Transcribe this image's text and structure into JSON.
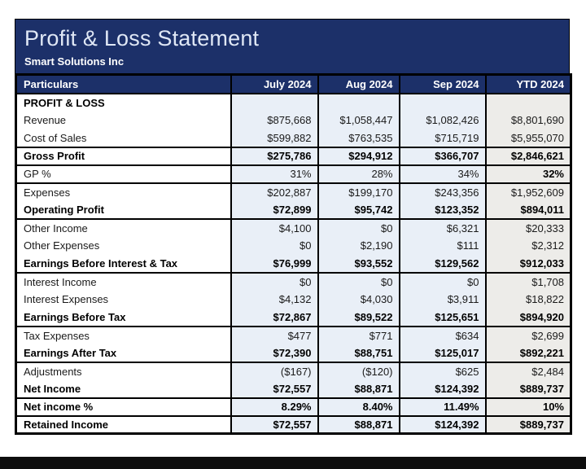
{
  "statement": {
    "title": "Profit & Loss Statement",
    "company": "Smart Solutions Inc"
  },
  "table": {
    "columns": [
      {
        "label": "Particulars"
      },
      {
        "label": "July 2024"
      },
      {
        "label": "Aug 2024"
      },
      {
        "label": "Sep 2024"
      },
      {
        "label": "YTD 2024"
      }
    ],
    "rows": [
      {
        "label": "PROFIT & LOSS",
        "bold": true,
        "sep_below": false,
        "values": [
          "",
          "",
          "",
          ""
        ]
      },
      {
        "label": "Revenue",
        "bold": false,
        "sep_below": false,
        "values": [
          "$875,668",
          "$1,058,447",
          "$1,082,426",
          "$8,801,690"
        ]
      },
      {
        "label": "Cost of Sales",
        "bold": false,
        "sep_below": true,
        "values": [
          "$599,882",
          "$763,535",
          "$715,719",
          "$5,955,070"
        ]
      },
      {
        "label": "Gross Profit",
        "bold": true,
        "sep_below": true,
        "values": [
          "$275,786",
          "$294,912",
          "$366,707",
          "$2,846,621"
        ]
      },
      {
        "label": "GP %",
        "bold": false,
        "ytd_bold": true,
        "sep_below": true,
        "values": [
          "31%",
          "28%",
          "34%",
          "32%"
        ]
      },
      {
        "label": "Expenses",
        "bold": false,
        "sep_below": false,
        "values": [
          "$202,887",
          "$199,170",
          "$243,356",
          "$1,952,609"
        ]
      },
      {
        "label": "Operating Profit",
        "bold": true,
        "sep_below": true,
        "values": [
          "$72,899",
          "$95,742",
          "$123,352",
          "$894,011"
        ]
      },
      {
        "label": "Other Income",
        "bold": false,
        "sep_below": false,
        "values": [
          "$4,100",
          "$0",
          "$6,321",
          "$20,333"
        ]
      },
      {
        "label": "Other Expenses",
        "bold": false,
        "sep_below": false,
        "values": [
          "$0",
          "$2,190",
          "$111",
          "$2,312"
        ]
      },
      {
        "label": "Earnings Before Interest & Tax",
        "bold": true,
        "sep_below": true,
        "values": [
          "$76,999",
          "$93,552",
          "$129,562",
          "$912,033"
        ]
      },
      {
        "label": "Interest Income",
        "bold": false,
        "sep_below": false,
        "values": [
          "$0",
          "$0",
          "$0",
          "$1,708"
        ]
      },
      {
        "label": "Interest Expenses",
        "bold": false,
        "sep_below": false,
        "values": [
          "$4,132",
          "$4,030",
          "$3,911",
          "$18,822"
        ]
      },
      {
        "label": "Earnings Before Tax",
        "bold": true,
        "sep_below": true,
        "values": [
          "$72,867",
          "$89,522",
          "$125,651",
          "$894,920"
        ]
      },
      {
        "label": "Tax Expenses",
        "bold": false,
        "sep_below": false,
        "values": [
          "$477",
          "$771",
          "$634",
          "$2,699"
        ]
      },
      {
        "label": "Earnings After Tax",
        "bold": true,
        "sep_below": true,
        "values": [
          "$72,390",
          "$88,751",
          "$125,017",
          "$892,221"
        ]
      },
      {
        "label": "Adjustments",
        "bold": false,
        "sep_below": false,
        "values": [
          "($167)",
          "($120)",
          "$625",
          "$2,484"
        ]
      },
      {
        "label": "Net Income",
        "bold": true,
        "sep_below": true,
        "values": [
          "$72,557",
          "$88,871",
          "$124,392",
          "$889,737"
        ]
      },
      {
        "label": "Net income %",
        "bold": true,
        "sep_below": true,
        "values": [
          "8.29%",
          "8.40%",
          "11.49%",
          "10%"
        ]
      },
      {
        "label": "Retained Income",
        "bold": true,
        "sep_below": false,
        "values": [
          "$72,557",
          "$88,871",
          "$124,392",
          "$889,737"
        ]
      }
    ]
  },
  "colors": {
    "navy": "#1c3069",
    "title_text": "#dfe7f5",
    "month_cell_bg": "#e9eff7",
    "ytd_cell_bg": "#edece9",
    "border": "#000000"
  }
}
